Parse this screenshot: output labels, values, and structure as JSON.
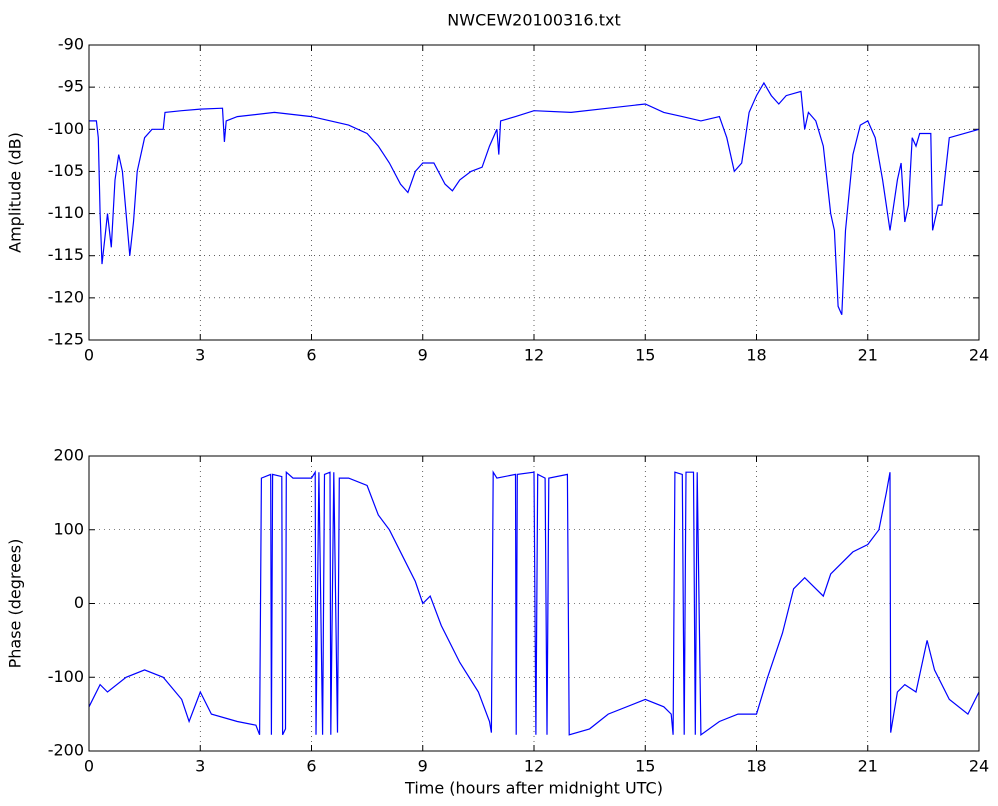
{
  "chart_data": [
    {
      "type": "line",
      "title": "NWCEW20100316.txt",
      "ylabel": "Amplitude (dB)",
      "color": "#0000ff",
      "grid": true,
      "xlim": [
        0,
        24
      ],
      "xticks": [
        0,
        3,
        6,
        9,
        12,
        15,
        18,
        21,
        24
      ],
      "ylim": [
        -125,
        -90
      ],
      "yticks": [
        -125,
        -120,
        -115,
        -110,
        -105,
        -100,
        -95,
        -90
      ],
      "x": [
        0,
        0.2,
        0.25,
        0.3,
        0.35,
        0.45,
        0.5,
        0.6,
        0.7,
        0.8,
        0.9,
        1.0,
        1.1,
        1.2,
        1.3,
        1.5,
        1.7,
        2.0,
        2.05,
        2.5,
        3.0,
        3.6,
        3.65,
        3.7,
        4.0,
        5,
        6,
        7,
        7.5,
        7.8,
        8.1,
        8.4,
        8.6,
        8.8,
        9.0,
        9.3,
        9.6,
        9.8,
        10.0,
        10.3,
        10.6,
        10.8,
        11.0,
        11.05,
        11.1,
        11.5,
        12.0,
        13,
        14,
        15,
        15.5,
        16,
        16.5,
        17,
        17.2,
        17.4,
        17.6,
        17.8,
        18.0,
        18.2,
        18.4,
        18.6,
        18.8,
        19.2,
        19.3,
        19.4,
        19.6,
        19.8,
        20.0,
        20.1,
        20.2,
        20.3,
        20.4,
        20.6,
        20.8,
        21.0,
        21.2,
        21.4,
        21.6,
        21.8,
        21.9,
        22.0,
        22.1,
        22.2,
        22.3,
        22.4,
        22.7,
        22.75,
        22.9,
        23.0,
        23.2,
        24
      ],
      "values": [
        -99,
        -99,
        -101,
        -110,
        -116,
        -112,
        -110,
        -114,
        -106,
        -103,
        -105,
        -110,
        -115,
        -111,
        -105,
        -101,
        -100,
        -100,
        -98,
        -97.8,
        -97.6,
        -97.5,
        -101.5,
        -99,
        -98.5,
        -98,
        -98.5,
        -99.5,
        -100.5,
        -102,
        -104,
        -106.5,
        -107.5,
        -105,
        -104,
        -104,
        -106.5,
        -107.3,
        -106,
        -105,
        -104.5,
        -102,
        -100,
        -103,
        -99,
        -98.5,
        -97.8,
        -98,
        -97.5,
        -97,
        -98,
        -98.5,
        -99,
        -98.5,
        -101,
        -105,
        -104,
        -98,
        -96,
        -94.5,
        -96,
        -97,
        -96,
        -95.5,
        -100,
        -98,
        -99,
        -102,
        -110,
        -112,
        -121,
        -122,
        -112,
        -103,
        -99.5,
        -99,
        -101,
        -106,
        -112,
        -106,
        -104,
        -111,
        -109,
        -101,
        -102,
        -100.5,
        -100.5,
        -112,
        -109,
        -109,
        -101,
        -100
      ]
    },
    {
      "type": "line",
      "ylabel": "Phase (degrees)",
      "xlabel": "Time (hours after midnight UTC)",
      "color": "#0000ff",
      "grid": true,
      "xlim": [
        0,
        24
      ],
      "xticks": [
        0,
        3,
        6,
        9,
        12,
        15,
        18,
        21,
        24
      ],
      "ylim": [
        -200,
        200
      ],
      "yticks": [
        -200,
        -100,
        0,
        100,
        200
      ],
      "x": [
        0,
        0.3,
        0.5,
        1,
        1.5,
        2,
        2.5,
        2.7,
        3,
        3.3,
        4,
        4.5,
        4.6,
        4.65,
        4.9,
        4.92,
        4.95,
        5.2,
        5.22,
        5.3,
        5.32,
        5.5,
        6.0,
        6.1,
        6.12,
        6.2,
        6.3,
        6.35,
        6.5,
        6.52,
        6.6,
        6.7,
        6.75,
        7,
        7.5,
        7.8,
        8.1,
        8.5,
        8.8,
        9.0,
        9.2,
        9.5,
        10.0,
        10.5,
        10.8,
        10.85,
        10.9,
        11.0,
        11.5,
        11.52,
        11.55,
        12.0,
        12.05,
        12.1,
        12.3,
        12.35,
        12.4,
        12.9,
        12.95,
        13.5,
        14,
        15,
        15.5,
        15.7,
        15.75,
        15.8,
        16,
        16.05,
        16.1,
        16.3,
        16.35,
        16.4,
        16.5,
        17,
        17.5,
        18,
        18.3,
        18.7,
        19.0,
        19.3,
        19.5,
        19.8,
        20,
        20.3,
        20.6,
        21.0,
        21.3,
        21.5,
        21.6,
        21.62,
        21.8,
        22,
        22.3,
        22.6,
        22.8,
        23.2,
        23.7,
        24
      ],
      "values": [
        -140,
        -110,
        -120,
        -100,
        -90,
        -100,
        -130,
        -160,
        -120,
        -150,
        -160,
        -165,
        -178,
        170,
        175,
        -178,
        175,
        172,
        -178,
        -170,
        178,
        170,
        170,
        178,
        -178,
        178,
        -178,
        175,
        178,
        -178,
        178,
        -175,
        170,
        170,
        160,
        120,
        100,
        60,
        30,
        0,
        10,
        -30,
        -80,
        -120,
        -160,
        -175,
        178,
        170,
        175,
        -178,
        175,
        178,
        -178,
        175,
        170,
        -178,
        170,
        175,
        -178,
        -170,
        -150,
        -130,
        -140,
        -150,
        -178,
        178,
        175,
        -178,
        178,
        178,
        -178,
        178,
        -178,
        -160,
        -150,
        -150,
        -100,
        -40,
        20,
        35,
        25,
        10,
        40,
        55,
        70,
        80,
        100,
        150,
        178,
        -175,
        -120,
        -110,
        -120,
        -50,
        -90,
        -130,
        -150,
        -120
      ]
    }
  ]
}
